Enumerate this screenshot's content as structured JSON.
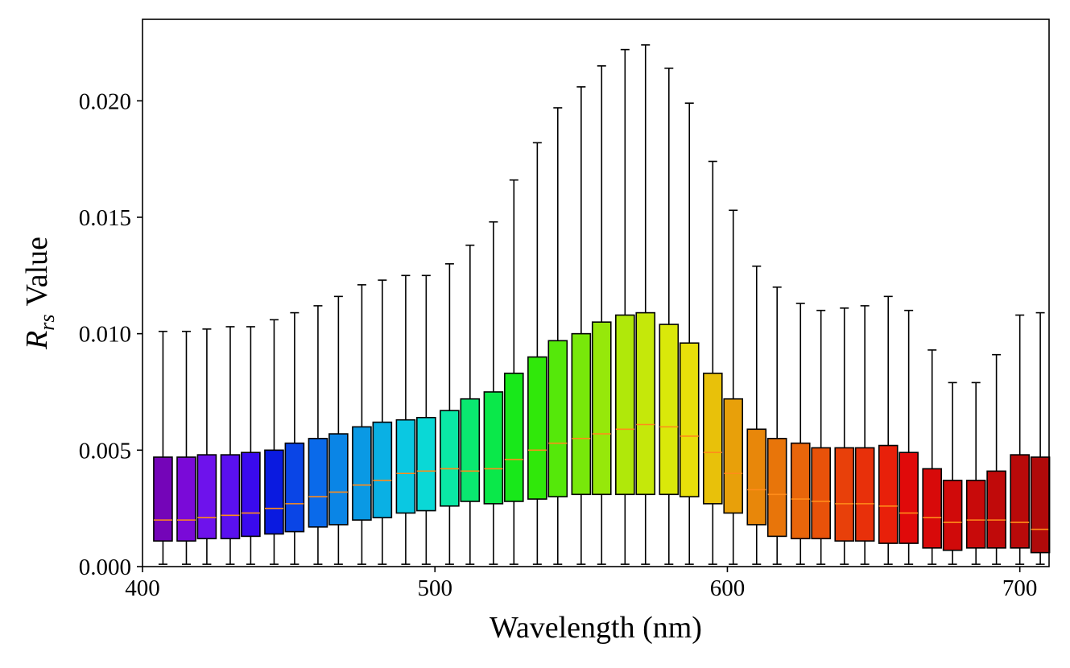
{
  "chart_data": {
    "type": "box",
    "xlabel": "Wavelength (nm)",
    "ylabel": {
      "symbol": "R",
      "subscript": "rs",
      "suffix": "Value"
    },
    "xlim": [
      400,
      710
    ],
    "ylim": [
      0,
      0.0235
    ],
    "x_ticks": [
      400,
      500,
      600,
      700
    ],
    "x_tick_labels": [
      "400",
      "500",
      "600",
      "700"
    ],
    "y_ticks": [
      0,
      0.005,
      0.01,
      0.015,
      0.02
    ],
    "y_tick_labels": [
      "0.000",
      "0.005",
      "0.010",
      "0.015",
      "0.020"
    ],
    "grid": false,
    "median_color": "#ff8c1a",
    "box_edge_color": "#000000",
    "wavelengths": [
      407,
      415,
      422,
      430,
      437,
      445,
      452,
      460,
      467,
      475,
      482,
      490,
      497,
      505,
      512,
      520,
      527,
      535,
      542,
      550,
      557,
      565,
      572,
      580,
      587,
      595,
      602,
      610,
      617,
      625,
      632,
      640,
      647,
      655,
      662,
      670,
      677,
      685,
      692,
      700,
      707
    ],
    "whisker_low": [
      0.0001,
      0.0001,
      0.0001,
      0.0001,
      0.0001,
      0.0001,
      0.0001,
      0.0001,
      0.0001,
      0.0001,
      0.0001,
      0.0001,
      0.0001,
      0.0001,
      0.0001,
      0.0001,
      0.0001,
      0.0001,
      0.0001,
      0.0001,
      0.0001,
      0.0001,
      0.0001,
      0.0001,
      0.0001,
      0.0001,
      0.0001,
      0.0001,
      0.0001,
      0.0001,
      0.0001,
      0.0001,
      0.0001,
      0.0001,
      0.0001,
      0.0001,
      0.0001,
      0.0001,
      0.0001,
      0.0001,
      0.0001
    ],
    "q1": [
      0.0011,
      0.0011,
      0.0012,
      0.0012,
      0.0013,
      0.0014,
      0.0015,
      0.0017,
      0.0018,
      0.002,
      0.0021,
      0.0023,
      0.0024,
      0.0026,
      0.0028,
      0.0027,
      0.0028,
      0.0029,
      0.003,
      0.0031,
      0.0031,
      0.0031,
      0.0031,
      0.0031,
      0.003,
      0.0027,
      0.0023,
      0.0018,
      0.0013,
      0.0012,
      0.0012,
      0.0011,
      0.0011,
      0.001,
      0.001,
      0.0008,
      0.0007,
      0.0008,
      0.0008,
      0.0008,
      0.0006
    ],
    "median": [
      0.002,
      0.002,
      0.0021,
      0.0022,
      0.0023,
      0.0025,
      0.0027,
      0.003,
      0.0032,
      0.0035,
      0.0037,
      0.004,
      0.0041,
      0.0042,
      0.0041,
      0.0042,
      0.0046,
      0.005,
      0.0053,
      0.0055,
      0.0057,
      0.0059,
      0.0061,
      0.006,
      0.0056,
      0.0049,
      0.004,
      0.0033,
      0.0031,
      0.0029,
      0.0028,
      0.0027,
      0.0027,
      0.0026,
      0.0023,
      0.0021,
      0.0019,
      0.002,
      0.002,
      0.0019,
      0.0016
    ],
    "q3": [
      0.0047,
      0.0047,
      0.0048,
      0.0048,
      0.0049,
      0.005,
      0.0053,
      0.0055,
      0.0057,
      0.006,
      0.0062,
      0.0063,
      0.0064,
      0.0067,
      0.0072,
      0.0075,
      0.0083,
      0.009,
      0.0097,
      0.01,
      0.0105,
      0.0108,
      0.0109,
      0.0104,
      0.0096,
      0.0083,
      0.0072,
      0.0059,
      0.0055,
      0.0053,
      0.0051,
      0.0051,
      0.0051,
      0.0052,
      0.0049,
      0.0042,
      0.0037,
      0.0037,
      0.0041,
      0.0048,
      0.0047
    ],
    "whisker_high": [
      0.0101,
      0.0101,
      0.0102,
      0.0103,
      0.0103,
      0.0106,
      0.0109,
      0.0112,
      0.0116,
      0.0121,
      0.0123,
      0.0125,
      0.0125,
      0.013,
      0.0138,
      0.0148,
      0.0166,
      0.0182,
      0.0197,
      0.0206,
      0.0215,
      0.0222,
      0.0224,
      0.0214,
      0.0199,
      0.0174,
      0.0153,
      0.0129,
      0.012,
      0.0113,
      0.011,
      0.0111,
      0.0112,
      0.0116,
      0.011,
      0.0093,
      0.0079,
      0.0079,
      0.0091,
      0.0108,
      0.0109
    ],
    "box_colors": [
      "#7405b8",
      "#7a0ad8",
      "#6e12ec",
      "#5a10ef",
      "#3a0aee",
      "#0a1ae0",
      "#0a45e6",
      "#0a6aea",
      "#0a85e6",
      "#0a99e4",
      "#0ab0e4",
      "#0ac8e2",
      "#0ad8d6",
      "#0ae8a5",
      "#0ae870",
      "#0ae84a",
      "#18e81a",
      "#30e80a",
      "#55e80a",
      "#78e80a",
      "#96e80a",
      "#b0e80a",
      "#c5e80a",
      "#dae80a",
      "#e8e00a",
      "#e8c10a",
      "#e8a00a",
      "#e8870a",
      "#e8750a",
      "#e8650a",
      "#e8520a",
      "#e8400a",
      "#e8300a",
      "#e8200a",
      "#e00a0a",
      "#d80a0a",
      "#d00a0a",
      "#c80a0a",
      "#c00a0a",
      "#b80a0a",
      "#b00a0a"
    ]
  }
}
